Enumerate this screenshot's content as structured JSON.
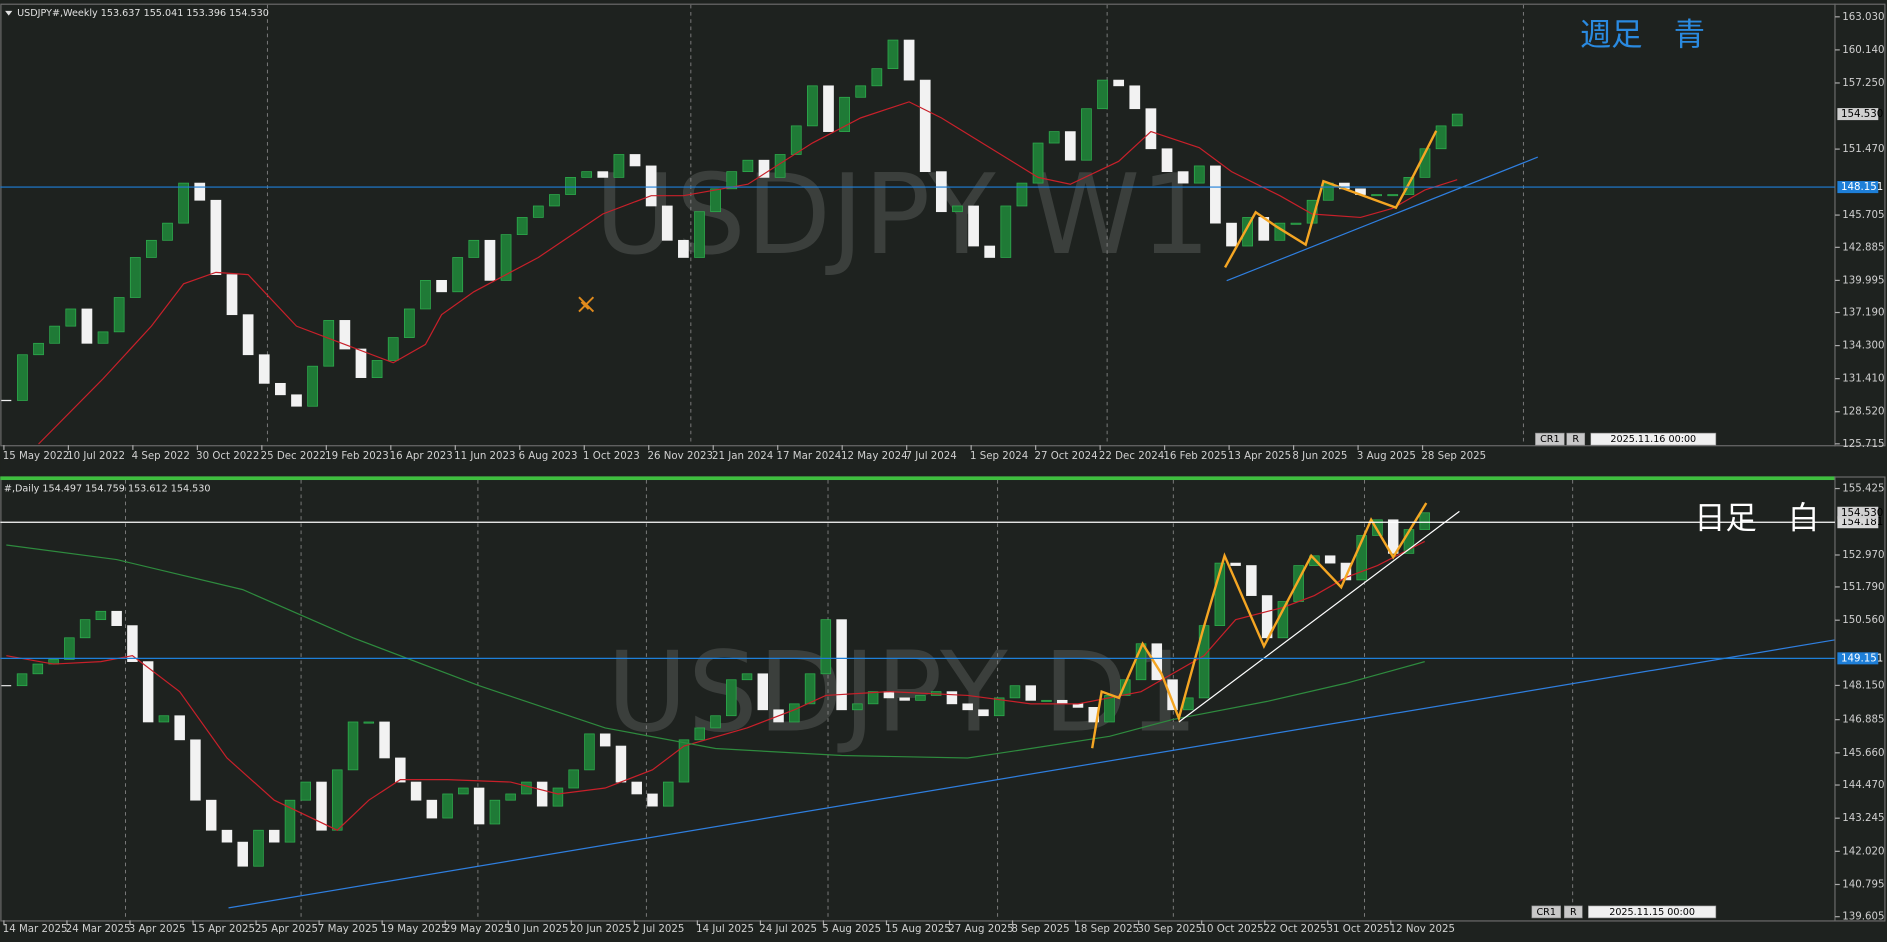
{
  "chart_data": [
    {
      "type": "candlestick",
      "header": "USDJPY#,Weekly  153.637 155.041 153.396 154.530",
      "watermark": "USDJPY W1",
      "annotation": "週足　青",
      "annotation_color": "#2a8ae0",
      "x_labels": [
        "15 May 2022",
        "10 Jul 2022",
        "4 Sep 2022",
        "30 Oct 2022",
        "25 Dec 2022",
        "19 Feb 2023",
        "16 Apr 2023",
        "11 Jun 2023",
        "6 Aug 2023",
        "1 Oct 2023",
        "26 Nov 2023",
        "21 Jan 2024",
        "17 Mar 2024",
        "12 May 2024",
        "7 Jul 2024",
        "1 Sep 2024",
        "27 Oct 2024",
        "22 Dec 2024",
        "16 Feb 2025",
        "13 Apr 2025",
        "8 Jun 2025",
        "3 Aug 2025",
        "28 Sep 2025"
      ],
      "ylim": [
        125.6,
        164.08
      ],
      "yticks": [
        {
          "value": 163.03,
          "label": "163.030"
        },
        {
          "value": 160.14,
          "label": "160.140"
        },
        {
          "value": 157.25,
          "label": "157.250"
        },
        {
          "value": 151.47,
          "label": "151.470"
        },
        {
          "value": 145.705,
          "label": "145.705"
        },
        {
          "value": 142.885,
          "label": "142.885"
        },
        {
          "value": 139.995,
          "label": "139.995"
        },
        {
          "value": 137.19,
          "label": "137.190"
        },
        {
          "value": 134.3,
          "label": "134.300"
        },
        {
          "value": 131.41,
          "label": "131.410"
        },
        {
          "value": 128.52,
          "label": "128.520"
        },
        {
          "value": 125.715,
          "label": "125.715"
        }
      ],
      "closes": [
        129.5,
        133.5,
        134.5,
        136,
        137.5,
        134.5,
        135.5,
        138.5,
        142,
        143.5,
        145,
        148.5,
        147,
        140.5,
        137,
        133.5,
        131,
        130,
        129,
        132.5,
        136.5,
        134,
        131.5,
        133,
        135,
        137.5,
        140,
        139,
        142,
        143.5,
        140,
        144,
        145.5,
        146.5,
        147.5,
        149,
        149.5,
        149,
        151,
        150,
        146.5,
        143.5,
        142,
        146,
        148,
        149.5,
        150.5,
        149,
        151,
        153.5,
        157,
        153,
        156,
        157,
        158.5,
        161,
        157.5,
        149.5,
        146,
        146.5,
        143,
        142,
        146.5,
        148.5,
        152,
        153,
        150.5,
        155,
        157.5,
        157,
        155,
        151.5,
        149.5,
        148.5,
        150,
        145,
        143,
        145.5,
        143.5,
        145,
        145,
        147,
        148.5,
        148,
        147.5,
        147.5,
        147.5,
        149,
        151.5,
        153.5,
        154.53
      ],
      "up_color": "#1f7a36",
      "down_color": "#f2f2f2",
      "ma": [
        {
          "color": "#c8202a",
          "x": [
            2,
            6,
            9,
            11,
            13,
            15,
            16,
            18,
            21,
            24,
            26,
            27,
            29,
            33,
            37,
            40,
            42,
            46,
            50,
            53,
            56,
            58,
            61,
            64,
            66,
            69,
            71,
            74,
            76,
            79,
            81,
            84,
            86,
            88,
            90
          ],
          "values": [
            125.7,
            131.4,
            136,
            139.7,
            140.7,
            140.5,
            139,
            136,
            134.4,
            132.8,
            134.4,
            137,
            139,
            142,
            145.8,
            147.4,
            147.4,
            148.4,
            152,
            154.2,
            155.6,
            154.2,
            151.6,
            149,
            148.4,
            150.4,
            153,
            151.6,
            149.5,
            147.4,
            145.8,
            145.5,
            146.3,
            147.9,
            148.8
          ]
        }
      ],
      "trendlines": [
        {
          "color": "#2f7fe0",
          "x": [
            75.7,
            95
          ],
          "values": [
            139.97,
            150.77
          ]
        }
      ],
      "zigzag": {
        "color": "#f5a623",
        "x": [
          75.6,
          77.5,
          78.8,
          80.6,
          81.7,
          86.2,
          87.3,
          88.7
        ],
        "values": [
          141.13,
          145.95,
          144.69,
          143.12,
          148.67,
          146.36,
          149.2,
          153.07
        ]
      },
      "hlines": [
        {
          "value": 148.151,
          "label": "148.151",
          "color": "#1e7fd8"
        }
      ],
      "price_marker": {
        "value": 154.53,
        "label": "154.530"
      },
      "footer": [
        "CR1",
        "R",
        "2025.11.16 00:00"
      ]
    },
    {
      "type": "candlestick",
      "header": "#,Daily  154.497 154.759 153.612 154.530",
      "watermark": "USDJPY D1",
      "annotation": "日足　白",
      "annotation_color": "#ffffff",
      "x_labels": [
        "14 Mar 2025",
        "24 Mar 2025",
        "3 Apr 2025",
        "15 Apr 2025",
        "25 Apr 2025",
        "7 May 2025",
        "19 May 2025",
        "29 May 2025",
        "10 Jun 2025",
        "20 Jun 2025",
        "2 Jul 2025",
        "14 Jul 2025",
        "24 Jul 2025",
        "5 Aug 2025",
        "15 Aug 2025",
        "27 Aug 2025",
        "8 Sep 2025",
        "18 Sep 2025",
        "30 Sep 2025",
        "10 Oct 2025",
        "22 Oct 2025",
        "31 Oct 2025",
        "12 Nov 2025"
      ],
      "ylim": [
        139.47,
        155.74
      ],
      "yticks": [
        {
          "value": 155.425,
          "label": "155.425"
        },
        {
          "value": 152.97,
          "label": "152.970"
        },
        {
          "value": 151.79,
          "label": "151.790"
        },
        {
          "value": 150.56,
          "label": "150.560"
        },
        {
          "value": 148.15,
          "label": "148.150"
        },
        {
          "value": 146.885,
          "label": "146.885"
        },
        {
          "value": 145.66,
          "label": "145.660"
        },
        {
          "value": 144.47,
          "label": "144.470"
        },
        {
          "value": 143.245,
          "label": "143.245"
        },
        {
          "value": 142.02,
          "label": "142.020"
        },
        {
          "value": 140.795,
          "label": "140.795"
        },
        {
          "value": 139.605,
          "label": "139.605"
        }
      ],
      "closes": [
        148.14,
        148.58,
        148.94,
        149.11,
        149.91,
        150.58,
        150.89,
        150.36,
        149.03,
        146.8,
        147.03,
        146.14,
        143.91,
        142.8,
        142.36,
        141.47,
        142.8,
        142.36,
        143.91,
        144.58,
        142.8,
        145.03,
        146.8,
        146.8,
        145.47,
        144.58,
        143.91,
        143.25,
        144.14,
        144.36,
        143.03,
        143.91,
        144.14,
        144.58,
        143.69,
        144.36,
        145.03,
        146.36,
        145.91,
        144.58,
        144.14,
        143.69,
        144.58,
        146.14,
        146.58,
        147.03,
        148.36,
        148.58,
        147.25,
        146.8,
        147.47,
        148.58,
        150.58,
        147.25,
        147.47,
        147.92,
        147.69,
        147.6,
        147.78,
        147.92,
        147.47,
        147.25,
        147.03,
        147.69,
        148.14,
        147.6,
        147.6,
        147.47,
        147.34,
        146.8,
        147.78,
        148.36,
        149.69,
        148.36,
        147.25,
        147.69,
        150.36,
        152.67,
        152.58,
        151.47,
        149.91,
        151.25,
        152.58,
        152.94,
        152.67,
        152.05,
        153.69,
        154.27,
        153.03,
        153.91,
        154.53
      ],
      "up_color": "#1f7a36",
      "down_color": "#f2f2f2",
      "ma": [
        {
          "color": "#c8202a",
          "x": [
            0,
            3,
            6,
            8,
            11,
            14,
            17,
            21,
            23,
            25,
            28,
            32,
            35,
            38,
            41,
            43,
            47,
            50,
            52,
            56,
            61,
            65,
            68,
            72,
            76,
            78,
            81,
            83,
            85,
            87,
            90
          ],
          "values": [
            149.25,
            148.94,
            149.03,
            149.25,
            147.92,
            145.47,
            143.91,
            142.8,
            143.91,
            144.67,
            144.67,
            144.58,
            144.14,
            144.36,
            145.03,
            145.91,
            146.58,
            147.25,
            147.78,
            147.92,
            147.78,
            147.47,
            147.47,
            147.92,
            149.25,
            150.58,
            151.03,
            151.47,
            152.14,
            152.58,
            153.47
          ]
        },
        {
          "color": "#2e8b3e",
          "x": [
            0,
            7,
            15,
            22,
            30,
            38,
            45,
            53,
            61,
            65,
            70,
            74,
            80,
            85,
            90
          ],
          "values": [
            153.34,
            152.8,
            151.69,
            149.91,
            148.14,
            146.58,
            145.82,
            145.56,
            145.47,
            145.82,
            146.27,
            146.89,
            147.56,
            148.23,
            149.03
          ]
        }
      ],
      "trendlines": [
        {
          "color": "#2f7fe0",
          "x": [
            14.1,
            116
          ],
          "values": [
            139.93,
            149.83
          ]
        },
        {
          "color": "#ffffff",
          "x": [
            74.4,
            92.2
          ],
          "values": [
            146.8,
            154.58
          ]
        }
      ],
      "zigzag": {
        "color": "#f5a623",
        "x": [
          68.9,
          69.5,
          70.6,
          72.1,
          73.3,
          74.4,
          75.9,
          77.3,
          79.8,
          82.8,
          84.7,
          86.6,
          88,
          90.1
        ],
        "values": [
          145.83,
          147.92,
          147.69,
          149.69,
          148.58,
          146.94,
          150.14,
          152.94,
          149.6,
          152.94,
          151.78,
          154.27,
          152.89,
          154.89
        ]
      },
      "hlines": [
        {
          "value": 149.151,
          "label": "149.151",
          "color": "#1e7fd8"
        },
        {
          "value": 154.181,
          "label": "154.181",
          "color": "#ffffff"
        }
      ],
      "price_marker": {
        "value": 154.53,
        "label": "154.530"
      },
      "footer": [
        "CR1",
        "R",
        "2025.11.15 00:00"
      ]
    }
  ]
}
